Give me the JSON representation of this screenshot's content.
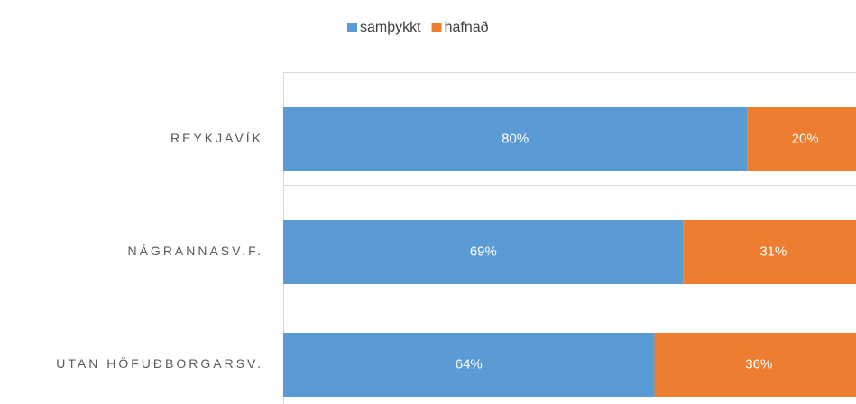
{
  "chart_data": {
    "type": "stacked_barh",
    "categories": [
      "REYKJAVÍK",
      "NÁGRANNASV.F.",
      "UTAN HÖFUÐBORGARSV."
    ],
    "series": [
      {
        "name": "samþykkt",
        "color": "#5b9bd5",
        "values": [
          80,
          69,
          64
        ],
        "value_labels": [
          "80%",
          "69%",
          "64%"
        ]
      },
      {
        "name": "hafnað",
        "color": "#ed7d31",
        "values": [
          20,
          31,
          36
        ],
        "value_labels": [
          "20%",
          "31%",
          "36%"
        ]
      }
    ],
    "xlim": [
      0,
      100
    ],
    "legend": "top"
  }
}
